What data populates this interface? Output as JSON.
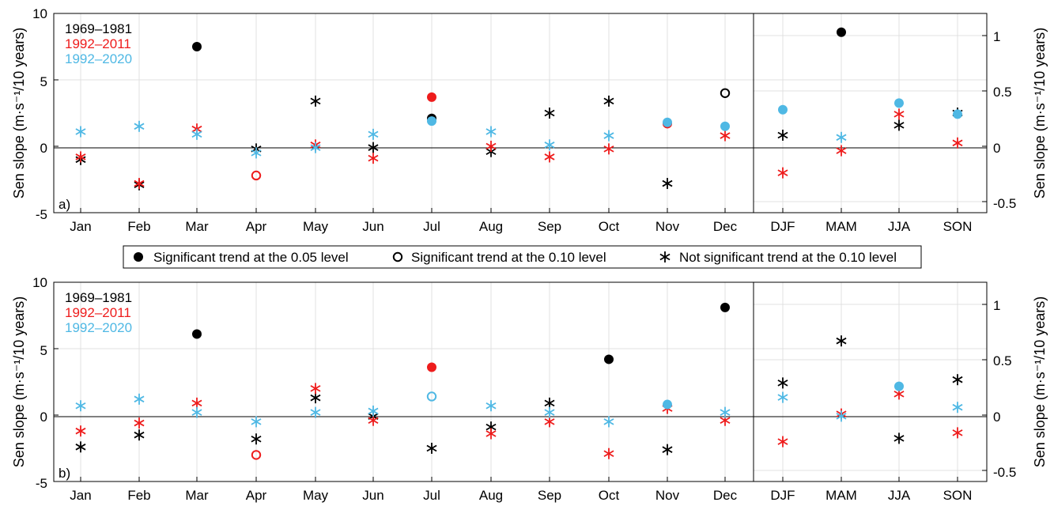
{
  "legend": {
    "items": [
      {
        "marker": "filled",
        "label": "Significant trend at the 0.05 level"
      },
      {
        "marker": "open",
        "label": "Significant trend at the 0.10 level"
      },
      {
        "marker": "star",
        "label": "Not significant trend at the 0.10 level"
      }
    ]
  },
  "colors": {
    "1969-1981": "#000000",
    "1992-2011": "#ee1c1c",
    "1992-2020": "#4fb8e4"
  },
  "chart_data": [
    {
      "type": "scatter",
      "panel_label": "a)",
      "categories": [
        "Jan",
        "Feb",
        "Mar",
        "Apr",
        "May",
        "Jun",
        "Jul",
        "Aug",
        "Sep",
        "Oct",
        "Nov",
        "Dec",
        "DJF",
        "MAM",
        "JJA",
        "SON"
      ],
      "ylabel": "Sen slope (m·s⁻¹/10 years)",
      "ylabel_right": "Sen slope (m·s⁻¹/10 years)",
      "ylim": [
        -5,
        10
      ],
      "ylim_right": [
        -0.6,
        1.2
      ],
      "yticks": [
        "-5",
        "0",
        "5",
        "10"
      ],
      "yticks_right": [
        "-0.5",
        "0",
        "0.5",
        "1"
      ],
      "series": [
        {
          "name": "1969–1981",
          "color": "#000000",
          "values": [
            -1.0,
            -2.9,
            7.5,
            -0.2,
            3.4,
            -0.1,
            2.1,
            -0.4,
            2.5,
            3.4,
            -2.8,
            4.0,
            0.1,
            1.03,
            0.19,
            0.3
          ],
          "markers": [
            "star",
            "star",
            "filled",
            "star",
            "star",
            "star",
            "filled",
            "star",
            "star",
            "star",
            "star",
            "open",
            "star",
            "filled",
            "star",
            "star"
          ]
        },
        {
          "name": "1992–2011",
          "color": "#ee1c1c",
          "values": [
            -0.8,
            -2.8,
            1.3,
            -2.2,
            0.1,
            -0.9,
            3.7,
            0.0,
            -0.8,
            -0.2,
            1.7,
            0.8,
            -0.24,
            -0.04,
            0.29,
            0.03
          ],
          "markers": [
            "star",
            "star",
            "star",
            "open",
            "star",
            "star",
            "filled",
            "star",
            "star",
            "star",
            "filled",
            "star",
            "star",
            "star",
            "star",
            "star"
          ]
        },
        {
          "name": "1992–2020",
          "color": "#4fb8e4",
          "values": [
            1.1,
            1.5,
            0.9,
            -0.5,
            -0.1,
            0.9,
            1.9,
            1.1,
            0.1,
            0.8,
            1.8,
            1.5,
            0.33,
            0.08,
            0.39,
            0.29
          ],
          "markers": [
            "star",
            "star",
            "star",
            "star",
            "star",
            "star",
            "filled",
            "star",
            "star",
            "star",
            "filled",
            "filled",
            "filled",
            "star",
            "filled",
            "filled"
          ]
        }
      ]
    },
    {
      "type": "scatter",
      "panel_label": "b)",
      "categories": [
        "Jan",
        "Feb",
        "Mar",
        "Apr",
        "May",
        "Jun",
        "Jul",
        "Aug",
        "Sep",
        "Oct",
        "Nov",
        "Dec",
        "DJF",
        "MAM",
        "JJA",
        "SON"
      ],
      "ylabel": "Sen slope (m·s⁻¹/10 years)",
      "ylabel_right": "Sen slope (m·s⁻¹/10 years)",
      "ylim": [
        -5,
        10
      ],
      "ylim_right": [
        -0.6,
        1.2
      ],
      "yticks": [
        "-5",
        "0",
        "5",
        "10"
      ],
      "yticks_right": [
        "-0.5",
        "0",
        "0.5",
        "1"
      ],
      "series": [
        {
          "name": "1969–1981",
          "color": "#000000",
          "values": [
            -2.4,
            -1.5,
            6.1,
            -1.8,
            1.3,
            -0.1,
            -2.5,
            -0.9,
            0.9,
            4.2,
            -2.6,
            8.1,
            0.29,
            0.67,
            -0.21,
            0.32
          ],
          "markers": [
            "star",
            "star",
            "filled",
            "star",
            "star",
            "star",
            "star",
            "star",
            "star",
            "filled",
            "star",
            "filled",
            "star",
            "star",
            "star",
            "star"
          ]
        },
        {
          "name": "1992–2011",
          "color": "#ee1c1c",
          "values": [
            -1.2,
            -0.6,
            0.9,
            -3.0,
            2.0,
            -0.4,
            3.6,
            -1.4,
            -0.5,
            -2.9,
            0.5,
            -0.4,
            -0.24,
            0.01,
            0.19,
            -0.16
          ],
          "markers": [
            "star",
            "star",
            "star",
            "open",
            "star",
            "star",
            "filled",
            "star",
            "star",
            "star",
            "star",
            "star",
            "star",
            "star",
            "star",
            "star"
          ]
        },
        {
          "name": "1992–2020",
          "color": "#4fb8e4",
          "values": [
            0.7,
            1.2,
            0.2,
            -0.5,
            0.2,
            0.3,
            1.4,
            0.7,
            0.2,
            -0.5,
            0.8,
            0.2,
            0.16,
            -0.01,
            0.26,
            0.07
          ],
          "markers": [
            "star",
            "star",
            "star",
            "star",
            "star",
            "star",
            "open",
            "star",
            "star",
            "star",
            "filled",
            "star",
            "star",
            "star",
            "filled",
            "star"
          ]
        }
      ]
    }
  ]
}
